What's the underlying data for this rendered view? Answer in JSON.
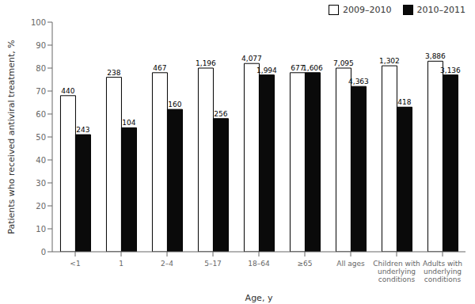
{
  "chart_data": {
    "type": "bar",
    "xlabel": "Age, y",
    "ylabel": "Patients who received antiviral treatment, %",
    "categories": [
      "<1",
      "1",
      "2–4",
      "5–17",
      "18–64",
      "≥65",
      "All ages",
      "Children with\nunderlying\nconditions",
      "Adults with\nunderlying\nconditions"
    ],
    "series": [
      {
        "name": "2009–2010",
        "color": "#ffffff",
        "values": [
          68,
          76,
          78,
          80,
          82,
          78,
          80,
          81,
          83
        ],
        "count_labels": [
          "440",
          "238",
          "467",
          "1,196",
          "4,077",
          "677",
          "7,095",
          "1,302",
          "3,886"
        ]
      },
      {
        "name": "2010–2011",
        "color": "#0a0a0a",
        "values": [
          51,
          54,
          62,
          58,
          77,
          78,
          72,
          63,
          77
        ],
        "count_labels": [
          "243",
          "104",
          "160",
          "256",
          "1,994",
          "1,606",
          "4,363",
          "418",
          "3,136"
        ]
      }
    ],
    "ylim": [
      0,
      100
    ],
    "yticks": [
      0,
      10,
      20,
      30,
      40,
      50,
      60,
      70,
      80,
      90,
      100
    ],
    "legend": "upper right",
    "grid": false
  }
}
